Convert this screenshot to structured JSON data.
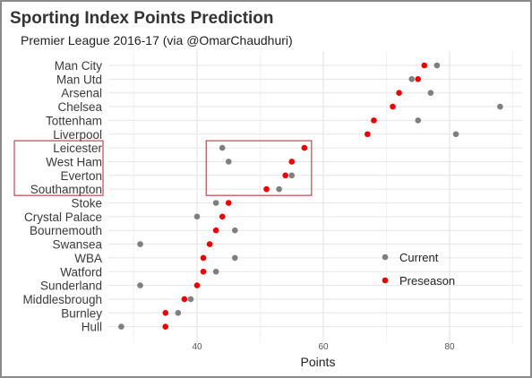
{
  "chart_data": {
    "type": "scatter",
    "title": "Sporting Index Points Prediction",
    "subtitle": "Premier League 2016-17 (via @OmarChaudhuri)",
    "xlabel": "Points",
    "ylabel": "",
    "xlim": [
      24,
      92
    ],
    "x_ticks": [
      40,
      60,
      80
    ],
    "categories": [
      "Man City",
      "Man Utd",
      "Arsenal",
      "Chelsea",
      "Tottenham",
      "Liverpool",
      "Leicester",
      "West Ham",
      "Everton",
      "Southampton",
      "Stoke",
      "Crystal Palace",
      "Bournemouth",
      "Swansea",
      "WBA",
      "Watford",
      "Sunderland",
      "Middlesbrough",
      "Burnley",
      "Hull"
    ],
    "series": [
      {
        "name": "Current",
        "color": "#7f7f7f",
        "values": [
          78,
          74,
          77,
          88,
          75,
          81,
          44,
          45,
          55,
          53,
          43,
          40,
          46,
          31,
          46,
          43,
          31,
          39,
          37,
          28
        ]
      },
      {
        "name": "Preseason",
        "color": "#ee0000",
        "values": [
          76,
          75,
          72,
          71,
          68,
          67,
          57,
          55,
          54,
          51,
          45,
          44,
          43,
          42,
          41,
          41,
          40,
          38,
          35,
          35
        ]
      }
    ],
    "grid": true,
    "legend": "right",
    "highlight_color": "#a52a2a"
  }
}
